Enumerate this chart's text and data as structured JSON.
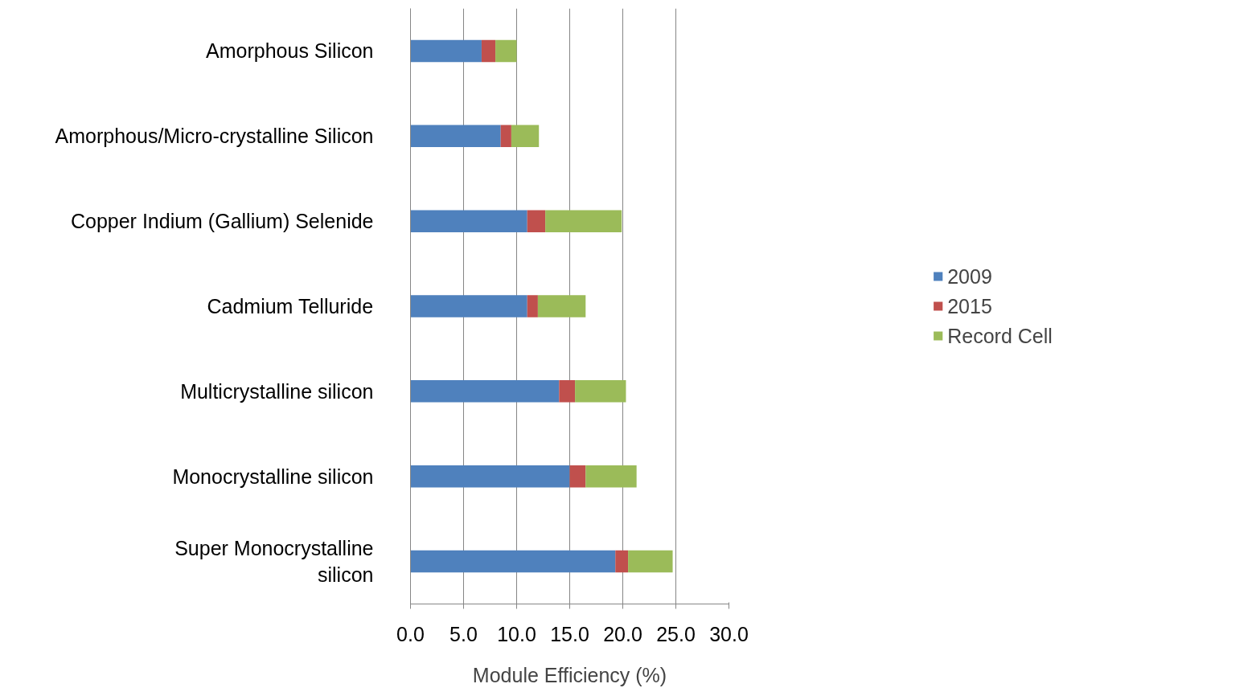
{
  "chart_data": {
    "type": "bar",
    "orientation": "horizontal",
    "stacked": true,
    "xlabel": "Module Efficiency (%)",
    "categories": [
      "Amorphous Silicon",
      "Amorphous/Micro-crystalline Silicon",
      "Copper Indium (Gallium) Selenide",
      "Cadmium Telluride",
      "Multicrystalline silicon",
      "Monocrystalline silicon",
      "Super Monocrystalline\nsilicon"
    ],
    "series": [
      {
        "name": "2009",
        "color": "#4f81bd",
        "values": [
          6.7,
          8.5,
          11.0,
          11.0,
          14.0,
          15.0,
          19.3
        ]
      },
      {
        "name": "2015",
        "color": "#c0504d",
        "values": [
          1.3,
          1.0,
          1.7,
          1.0,
          1.5,
          1.5,
          1.2
        ]
      },
      {
        "name": "Record Cell",
        "color": "#9bbb59",
        "values": [
          2.0,
          2.6,
          7.2,
          4.5,
          4.8,
          4.8,
          4.2
        ]
      }
    ],
    "xlim": [
      0,
      30
    ],
    "xticks": [
      {
        "value": 0,
        "label": "0.0"
      },
      {
        "value": 5,
        "label": "5.0"
      },
      {
        "value": 10,
        "label": "10.0"
      },
      {
        "value": 15,
        "label": "15.0"
      },
      {
        "value": 20,
        "label": "20.0"
      },
      {
        "value": 25,
        "label": "25.0"
      },
      {
        "value": 30,
        "label": "30.0"
      }
    ],
    "grid": "x",
    "legend": "right"
  }
}
